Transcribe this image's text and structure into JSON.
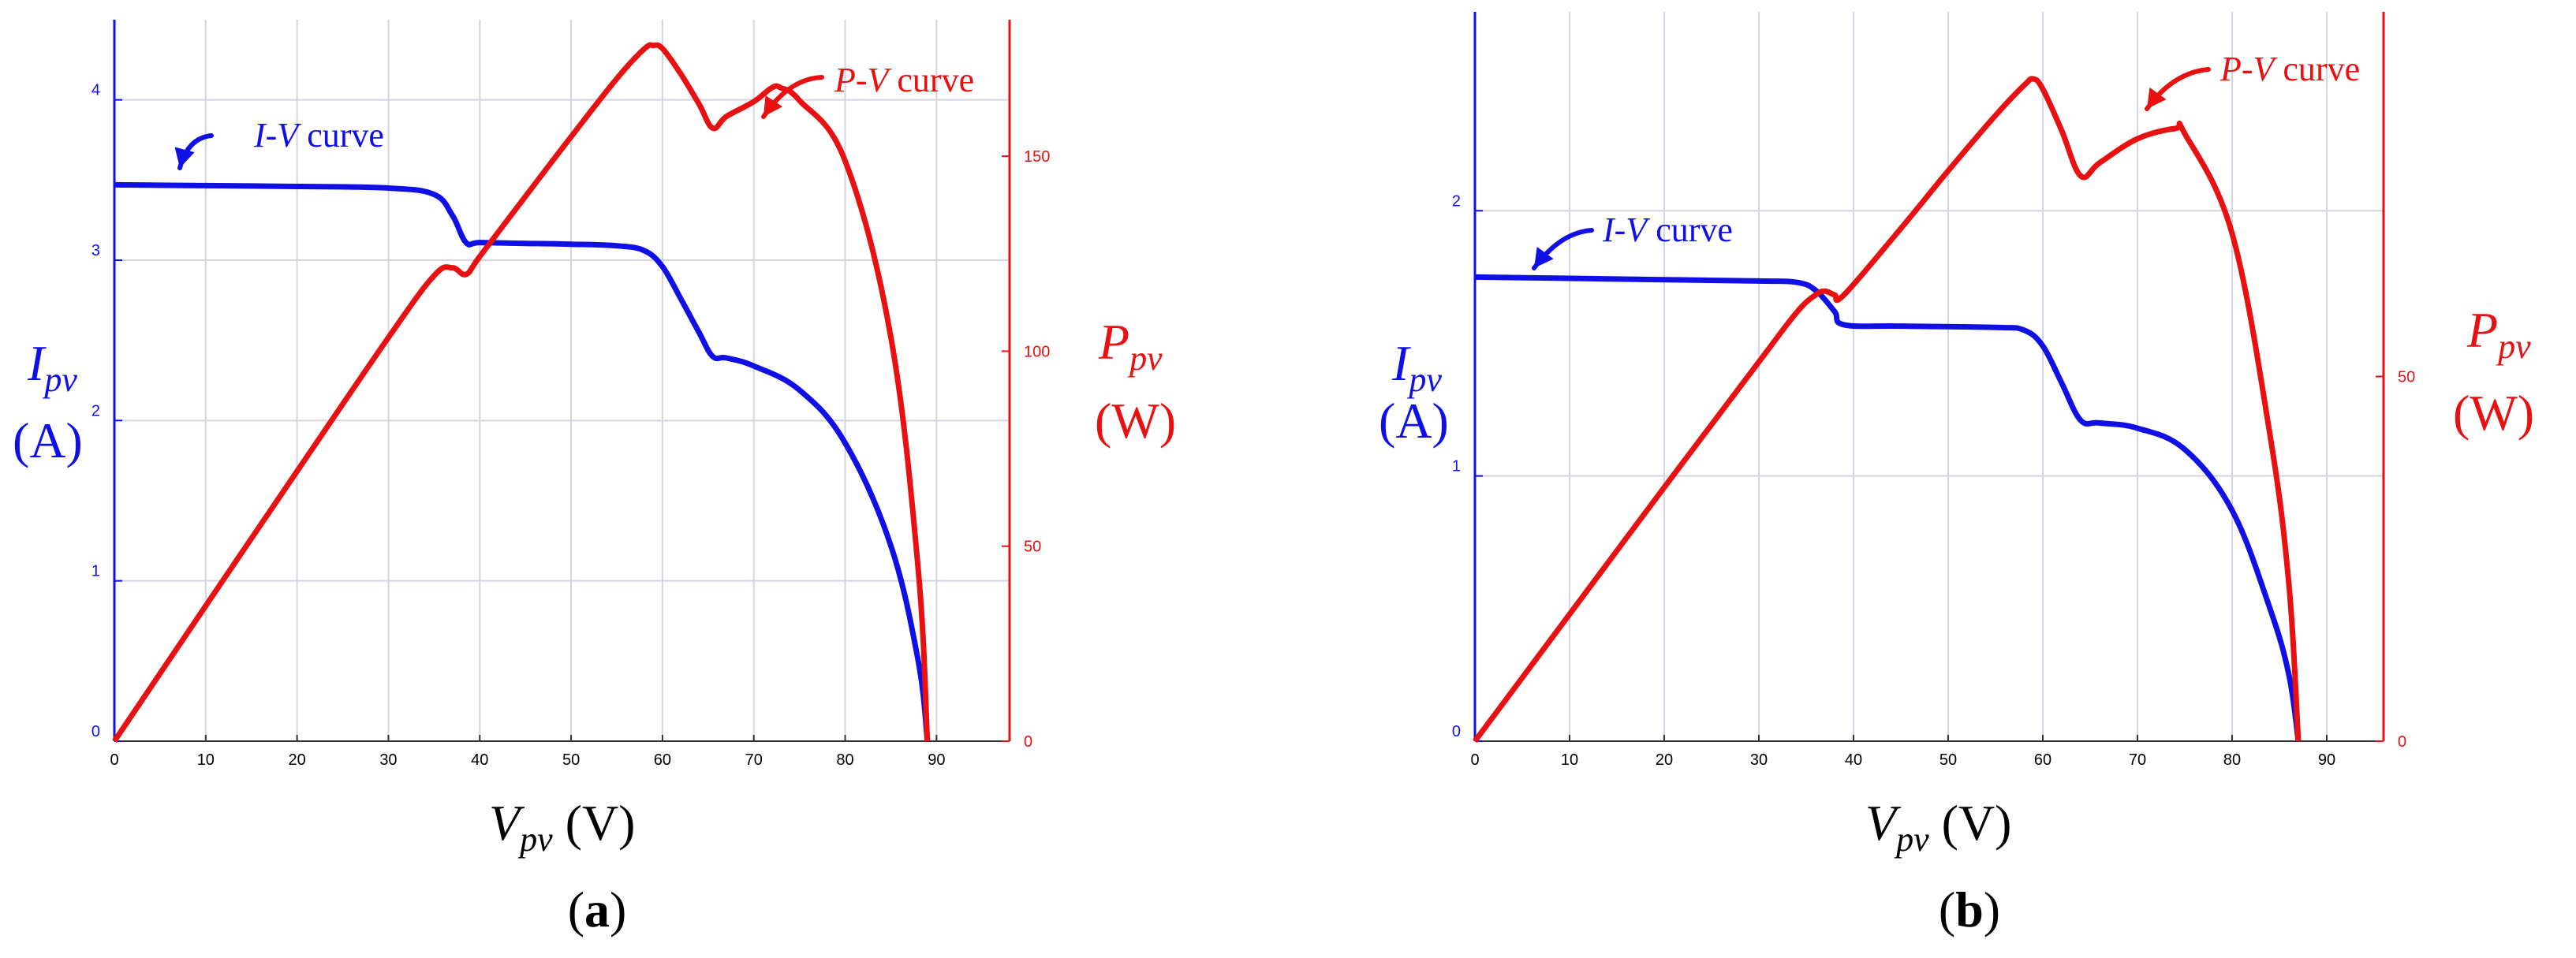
{
  "colors": {
    "current": "#1010e6",
    "power": "#e81010",
    "grid": "#d3d3e2",
    "text": "#000000"
  },
  "charts": [
    {
      "caption_letter": "a",
      "ylabel_sym": "I",
      "ylabel_sub": "pv",
      "ylabel_unit": "(A)",
      "y2label_sym": "P",
      "y2label_sub": "pv",
      "y2label_unit": "(W)",
      "xlabel_sym": "V",
      "xlabel_sub": "pv",
      "xlabel_unit": " (V)",
      "iv_annotation": {
        "italic": "I-V",
        "rest": " curve"
      },
      "pv_annotation": {
        "italic": "P-V",
        "rest": " curve"
      }
    },
    {
      "caption_letter": "b",
      "ylabel_sym": "I",
      "ylabel_sub": "pv",
      "ylabel_unit": "(A)",
      "y2label_sym": "P",
      "y2label_sub": "pv",
      "y2label_unit": "(W)",
      "xlabel_sym": "V",
      "xlabel_sub": "pv",
      "xlabel_unit": " (V)",
      "iv_annotation": {
        "italic": "I-V",
        "rest": " curve"
      },
      "pv_annotation": {
        "italic": "P-V",
        "rest": " curve"
      }
    }
  ],
  "chart_data": [
    {
      "type": "line",
      "title": "(a)",
      "xlabel": "Vpv (V)",
      "ylabel": "Ipv (A)",
      "y2label": "Ppv (W)",
      "xlim": [
        0,
        98
      ],
      "ylim": [
        0,
        4.5
      ],
      "y2lim": [
        0,
        185
      ],
      "xticks": [
        0,
        10,
        20,
        30,
        40,
        50,
        60,
        70,
        80,
        90
      ],
      "yticks": [
        0,
        1,
        2,
        3,
        4
      ],
      "y2ticks": [
        0,
        50,
        100,
        150
      ],
      "grid": true,
      "series": [
        {
          "name": "I-V curve",
          "axis": "left",
          "x": [
            0,
            10,
            20,
            30,
            35,
            37,
            38.5,
            40,
            45,
            50,
            55,
            58,
            60,
            62,
            64,
            65.5,
            67,
            70,
            75,
            80,
            85,
            88,
            89
          ],
          "y": [
            3.47,
            3.465,
            3.46,
            3.45,
            3.41,
            3.28,
            3.11,
            3.11,
            3.105,
            3.1,
            3.09,
            3.06,
            2.96,
            2.76,
            2.55,
            2.4,
            2.39,
            2.34,
            2.19,
            1.86,
            1.22,
            0.5,
            0.0
          ]
        },
        {
          "name": "P-V curve",
          "axis": "right",
          "x": [
            0,
            10,
            20,
            30,
            35,
            37,
            38.5,
            40,
            45,
            50,
            55,
            58,
            59,
            60,
            62,
            64,
            65.5,
            67,
            70,
            72,
            73,
            75,
            80,
            85,
            88,
            89
          ],
          "y": [
            0,
            34.7,
            69.2,
            103.5,
            119.4,
            121.4,
            119.7,
            124.3,
            139.7,
            155.0,
            169.9,
            177.5,
            178.4,
            177.6,
            171.1,
            163.4,
            157.2,
            160.2,
            164.0,
            167.6,
            167.5,
            164.3,
            148.8,
            103.7,
            44.0,
            0
          ]
        }
      ]
    },
    {
      "type": "line",
      "title": "(b)",
      "xlabel": "Vpv (V)",
      "ylabel": "Ipv (A)",
      "y2label": "Ppv (W)",
      "xlim": [
        0,
        96
      ],
      "ylim": [
        0,
        2.75
      ],
      "y2lim": [
        0,
        100
      ],
      "xticks": [
        0,
        10,
        20,
        30,
        40,
        50,
        60,
        70,
        80,
        90
      ],
      "yticks": [
        0,
        1,
        2
      ],
      "y2ticks": [
        0,
        50
      ],
      "grid": true,
      "series": [
        {
          "name": "I-V curve",
          "axis": "left",
          "x": [
            0,
            10,
            20,
            30,
            34,
            36,
            38,
            39,
            45,
            55,
            58,
            60,
            62,
            64,
            66,
            70,
            75,
            80,
            84,
            86,
            87
          ],
          "y": [
            1.75,
            1.745,
            1.74,
            1.735,
            1.73,
            1.7,
            1.62,
            1.57,
            1.565,
            1.56,
            1.55,
            1.49,
            1.35,
            1.21,
            1.2,
            1.18,
            1.1,
            0.87,
            0.5,
            0.25,
            0.0
          ]
        },
        {
          "name": "P-V curve",
          "axis": "right",
          "x": [
            0,
            10,
            20,
            30,
            34,
            36,
            37,
            38,
            39,
            45,
            50,
            55,
            58,
            59,
            60,
            62,
            64,
            66,
            70,
            74,
            75,
            80,
            84,
            86,
            87
          ],
          "y": [
            0,
            17.4,
            34.8,
            52.0,
            58.8,
            61.2,
            61.7,
            61.2,
            61.2,
            70.3,
            78.2,
            85.8,
            89.9,
            90.8,
            89.4,
            83.7,
            77.5,
            79.3,
            82.6,
            84.0,
            83.3,
            69.6,
            42.0,
            21.5,
            0
          ]
        }
      ]
    }
  ]
}
